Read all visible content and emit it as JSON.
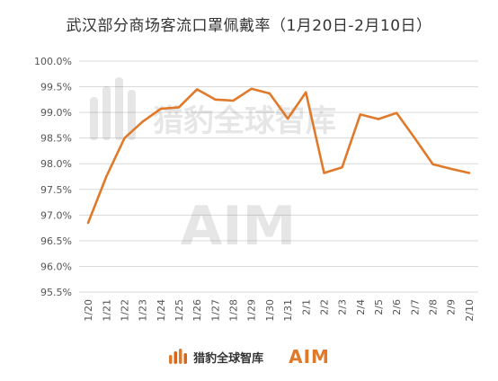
{
  "title": "武汉部分商场客流口罩佩戴率（1月20日-2月10日）",
  "chart_data": {
    "type": "line",
    "title": "武汉部分商场客流口罩佩戴率（1月20日-2月10日）",
    "xlabel": "",
    "ylabel": "",
    "categories": [
      "1/20",
      "1/21",
      "1/22",
      "1/23",
      "1/24",
      "1/25",
      "1/26",
      "1/27",
      "1/28",
      "1/29",
      "1/30",
      "1/31",
      "2/1",
      "2/2",
      "2/3",
      "2/4",
      "2/5",
      "2/6",
      "2/7",
      "2/8",
      "2/9",
      "2/10"
    ],
    "series": [
      {
        "values": [
          96.85,
          97.75,
          98.5,
          98.82,
          99.07,
          99.1,
          99.45,
          99.25,
          99.23,
          99.46,
          99.37,
          98.88,
          99.39,
          97.82,
          97.93,
          98.96,
          98.87,
          98.99,
          98.5,
          97.99,
          97.9,
          97.82
        ]
      }
    ],
    "ylim": [
      95.5,
      100.0
    ],
    "yticks": [
      "100.0%",
      "99.5%",
      "99.0%",
      "98.5%",
      "98.0%",
      "97.5%",
      "97.0%",
      "96.5%",
      "96.0%",
      "95.5%"
    ],
    "line_color": "#e07a2a",
    "grid": true,
    "legend": "none"
  },
  "footer": {
    "brand_cn": "猎豹全球智库",
    "brand_aim": "AIM"
  },
  "watermark": {
    "text_cn": "猎豹全球智库",
    "text_aim": "AIM"
  }
}
